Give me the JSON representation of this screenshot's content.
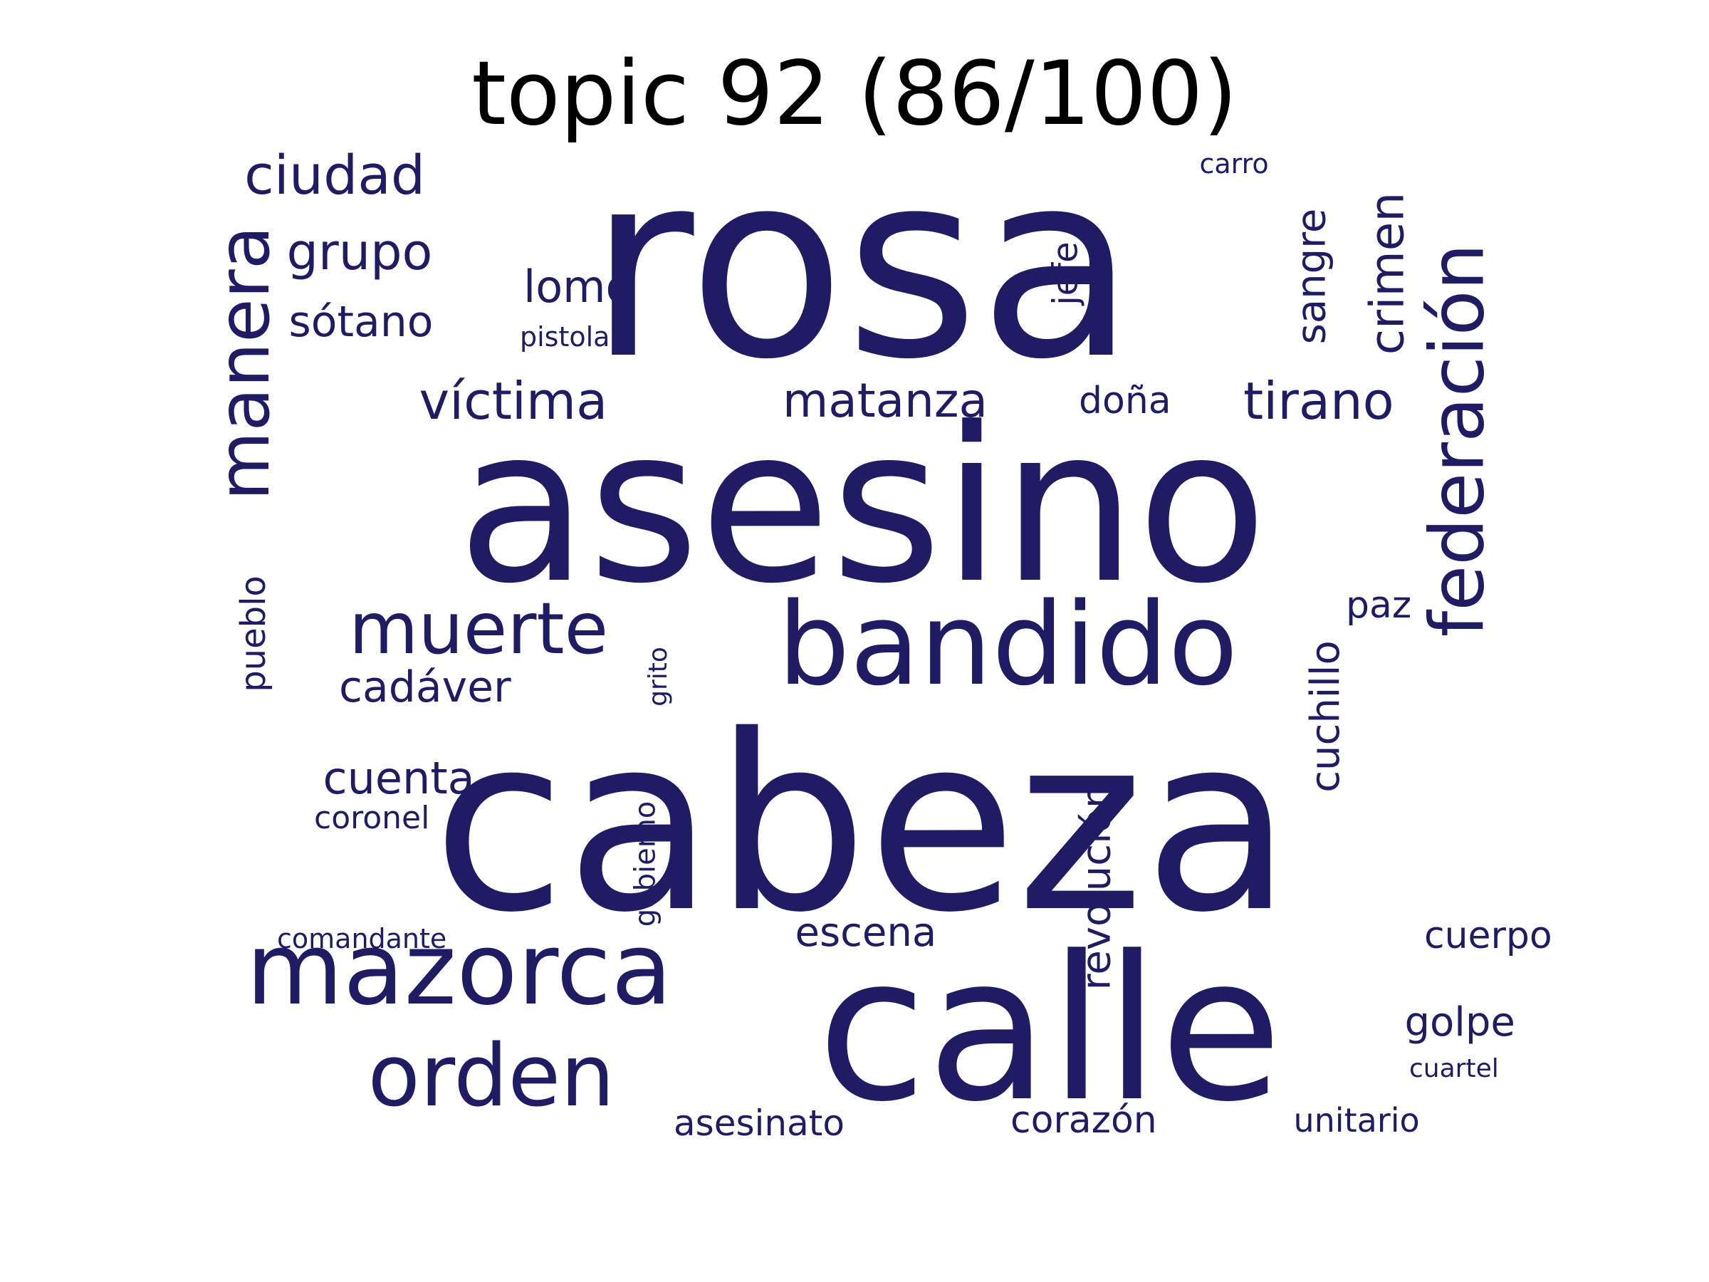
{
  "title": "topic 92 (86/100)",
  "colors": {
    "word": "#201c64",
    "title": "#000000",
    "background": "#ffffff"
  },
  "words": [
    {
      "text": "rosa",
      "orientation": "horizontal"
    },
    {
      "text": "asesino",
      "orientation": "horizontal"
    },
    {
      "text": "cabeza",
      "orientation": "horizontal"
    },
    {
      "text": "calle",
      "orientation": "horizontal"
    },
    {
      "text": "bandido",
      "orientation": "horizontal"
    },
    {
      "text": "mazorca",
      "orientation": "horizontal"
    },
    {
      "text": "orden",
      "orientation": "horizontal"
    },
    {
      "text": "federación",
      "orientation": "vertical"
    },
    {
      "text": "manera",
      "orientation": "vertical"
    },
    {
      "text": "muerte",
      "orientation": "horizontal"
    },
    {
      "text": "ciudad",
      "orientation": "horizontal"
    },
    {
      "text": "grupo",
      "orientation": "horizontal"
    },
    {
      "text": "víctima",
      "orientation": "horizontal"
    },
    {
      "text": "tirano",
      "orientation": "horizontal"
    },
    {
      "text": "matanza",
      "orientation": "horizontal"
    },
    {
      "text": "crimen",
      "orientation": "vertical"
    },
    {
      "text": "revolución",
      "orientation": "vertical"
    },
    {
      "text": "cuchillo",
      "orientation": "vertical"
    },
    {
      "text": "sótano",
      "orientation": "horizontal"
    },
    {
      "text": "cadáver",
      "orientation": "horizontal"
    },
    {
      "text": "cuenta",
      "orientation": "horizontal"
    },
    {
      "text": "sangre",
      "orientation": "vertical"
    },
    {
      "text": "lomo",
      "orientation": "horizontal"
    },
    {
      "text": "escena",
      "orientation": "horizontal"
    },
    {
      "text": "cuerpo",
      "orientation": "horizontal"
    },
    {
      "text": "golpe",
      "orientation": "horizontal"
    },
    {
      "text": "corazón",
      "orientation": "horizontal"
    },
    {
      "text": "asesinato",
      "orientation": "horizontal"
    },
    {
      "text": "unitario",
      "orientation": "horizontal"
    },
    {
      "text": "doña",
      "orientation": "horizontal"
    },
    {
      "text": "paz",
      "orientation": "horizontal"
    },
    {
      "text": "pueblo",
      "orientation": "vertical"
    },
    {
      "text": "jefe",
      "orientation": "vertical"
    },
    {
      "text": "coronel",
      "orientation": "horizontal"
    },
    {
      "text": "gobierno",
      "orientation": "vertical"
    },
    {
      "text": "comandante",
      "orientation": "horizontal"
    },
    {
      "text": "cuartel",
      "orientation": "horizontal"
    },
    {
      "text": "pistola",
      "orientation": "horizontal"
    },
    {
      "text": "grito",
      "orientation": "vertical"
    },
    {
      "text": "carro",
      "orientation": "horizontal"
    }
  ]
}
